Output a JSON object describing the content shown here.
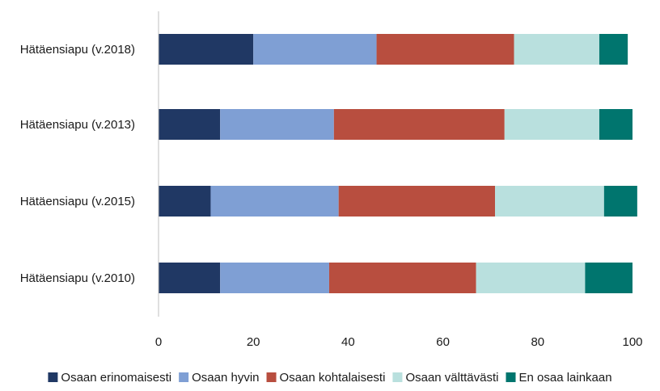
{
  "chart_data": {
    "type": "bar",
    "orientation": "horizontal",
    "stacked": true,
    "categories": [
      "Hätäensiapu (v.2018)",
      "Hätäensiapu (v.2013)",
      "Hätäensiapu (v.2015)",
      "Hätäensiapu (v.2010)"
    ],
    "series": [
      {
        "name": "Osaan erinomaisesti",
        "color": "#203864",
        "values": [
          20,
          13,
          11,
          13
        ]
      },
      {
        "name": "Osaan hyvin",
        "color": "#7f9fd4",
        "values": [
          26,
          24,
          27,
          23
        ]
      },
      {
        "name": "Osaan kohtalaisesti",
        "color": "#b84e3f",
        "values": [
          29,
          36,
          33,
          31
        ]
      },
      {
        "name": "Osaan välttävästi",
        "color": "#b9e0de",
        "values": [
          18,
          20,
          23,
          23
        ]
      },
      {
        "name": "En osaa lainkaan",
        "color": "#00756e",
        "values": [
          6,
          7,
          7,
          10
        ]
      }
    ],
    "xlim": [
      0,
      100
    ],
    "xticks": [
      "0",
      "20",
      "40",
      "60",
      "80",
      "100"
    ],
    "title": "",
    "xlabel": "",
    "ylabel": "",
    "grid": false,
    "legend_position": "bottom"
  }
}
